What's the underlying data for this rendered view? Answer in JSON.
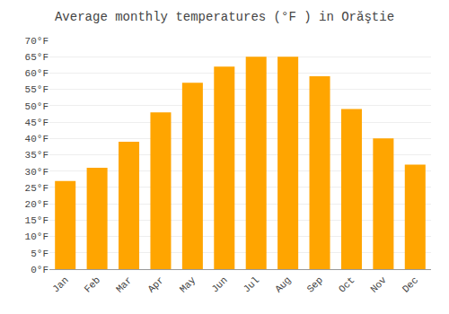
{
  "chart_data": {
    "type": "bar",
    "title": "Average monthly temperatures (°F ) in Orăştie",
    "categories": [
      "Jan",
      "Feb",
      "Mar",
      "Apr",
      "May",
      "Jun",
      "Jul",
      "Aug",
      "Sep",
      "Oct",
      "Nov",
      "Dec"
    ],
    "values": [
      27,
      31,
      39,
      48,
      57,
      62,
      65,
      65,
      59,
      49,
      40,
      32
    ],
    "color": "#FFA500",
    "ylim": [
      0,
      70
    ],
    "yticks": [
      {
        "value": 0,
        "label": "0°F"
      },
      {
        "value": 5,
        "label": "5°F"
      },
      {
        "value": 10,
        "label": "10°F"
      },
      {
        "value": 15,
        "label": "15°F"
      },
      {
        "value": 20,
        "label": "20°F"
      },
      {
        "value": 25,
        "label": "25°F"
      },
      {
        "value": 30,
        "label": "30°F"
      },
      {
        "value": 35,
        "label": "35°F"
      },
      {
        "value": 40,
        "label": "40°F"
      },
      {
        "value": 45,
        "label": "45°F"
      },
      {
        "value": 50,
        "label": "50°F"
      },
      {
        "value": 55,
        "label": "55°F"
      },
      {
        "value": 60,
        "label": "60°F"
      },
      {
        "value": 65,
        "label": "65°F"
      },
      {
        "value": 70,
        "label": "70°F"
      }
    ],
    "grid": true
  }
}
